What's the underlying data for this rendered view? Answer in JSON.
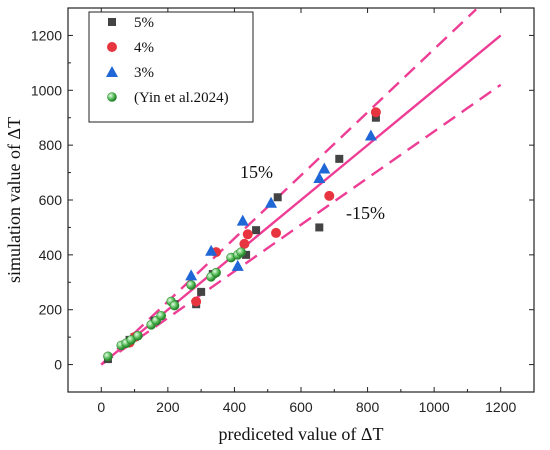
{
  "chart_data": {
    "type": "scatter",
    "xlabel": "prediceted value of ΔT",
    "ylabel": "simulation value of ΔT",
    "xlim": [
      -100,
      1300
    ],
    "ylim": [
      -100,
      1300
    ],
    "xticks": [
      0,
      200,
      400,
      600,
      800,
      1000,
      1200
    ],
    "yticks": [
      0,
      200,
      400,
      600,
      800,
      1000,
      1200
    ],
    "grid": false,
    "legend": "top-left",
    "series": [
      {
        "name": "5%",
        "marker": "square",
        "color": "#444444",
        "points": [
          [
            20,
            20
          ],
          [
            85,
            90
          ],
          [
            100,
            100
          ],
          [
            160,
            160
          ],
          [
            220,
            220
          ],
          [
            285,
            220
          ],
          [
            300,
            265
          ],
          [
            335,
            330
          ],
          [
            435,
            400
          ],
          [
            465,
            490
          ],
          [
            530,
            610
          ],
          [
            655,
            500
          ],
          [
            715,
            750
          ],
          [
            825,
            900
          ]
        ]
      },
      {
        "name": "4%",
        "marker": "circle",
        "color": "#e8343f",
        "points": [
          [
            85,
            80
          ],
          [
            100,
            100
          ],
          [
            285,
            230
          ],
          [
            345,
            410
          ],
          [
            430,
            440
          ],
          [
            440,
            475
          ],
          [
            525,
            480
          ],
          [
            685,
            615
          ],
          [
            825,
            920
          ]
        ]
      },
      {
        "name": "3%",
        "marker": "triangle",
        "color": "#1f66d6",
        "points": [
          [
            270,
            325
          ],
          [
            330,
            415
          ],
          [
            410,
            360
          ],
          [
            425,
            525
          ],
          [
            510,
            590
          ],
          [
            655,
            680
          ],
          [
            670,
            715
          ],
          [
            810,
            835
          ]
        ]
      },
      {
        "name": "(Yin et al.2024)",
        "marker": "circle-gradient",
        "color": "#4caf50",
        "points": [
          [
            20,
            30
          ],
          [
            60,
            70
          ],
          [
            75,
            78
          ],
          [
            90,
            90
          ],
          [
            110,
            105
          ],
          [
            150,
            145
          ],
          [
            165,
            160
          ],
          [
            180,
            178
          ],
          [
            210,
            230
          ],
          [
            220,
            215
          ],
          [
            270,
            290
          ],
          [
            330,
            320
          ],
          [
            345,
            335
          ],
          [
            390,
            390
          ],
          [
            410,
            400
          ],
          [
            420,
            410
          ]
        ]
      }
    ],
    "reference_lines": [
      {
        "label": "",
        "slope": 1.0,
        "style": "solid",
        "color": "#ee3d95"
      },
      {
        "label": "15%",
        "slope": 1.15,
        "style": "dashed",
        "color": "#ee3d95"
      },
      {
        "label": "-15%",
        "slope": 0.85,
        "style": "dashed",
        "color": "#ee3d95"
      }
    ]
  }
}
